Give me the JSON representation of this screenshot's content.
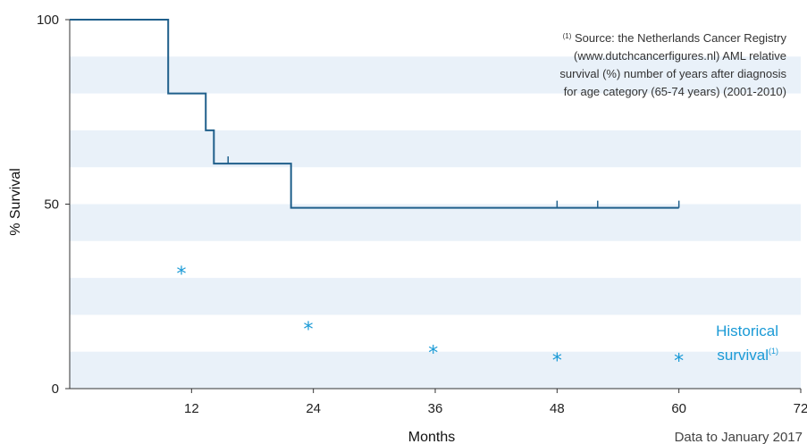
{
  "chart_data": {
    "type": "line",
    "ylabel": "% Survival",
    "xlabel": "Months",
    "xlim": [
      0,
      72
    ],
    "ylim": [
      0,
      100
    ],
    "x_ticks": [
      12,
      24,
      36,
      48,
      60,
      72
    ],
    "y_ticks": [
      0,
      50,
      100
    ],
    "grid_bands": true,
    "kaplan_meier": {
      "steps": [
        {
          "x": 0,
          "y": 100
        },
        {
          "x": 9.7,
          "y": 80
        },
        {
          "x": 13.4,
          "y": 70
        },
        {
          "x": 14.2,
          "y": 61
        },
        {
          "x": 21.8,
          "y": 49
        },
        {
          "x": 60,
          "y": 49
        }
      ],
      "censor_marks": [
        {
          "x": 15.6,
          "y": 61
        },
        {
          "x": 48,
          "y": 49
        },
        {
          "x": 52,
          "y": 49
        },
        {
          "x": 60,
          "y": 49
        }
      ]
    },
    "historical": {
      "label_line1": "Historical",
      "label_line2": "survival",
      "label_sup": "(1)",
      "marker": "*",
      "color": "#1a9ad6",
      "points": [
        {
          "x": 11,
          "y": 32
        },
        {
          "x": 23.5,
          "y": 17
        },
        {
          "x": 35.8,
          "y": 10.5
        },
        {
          "x": 48,
          "y": 8.5
        },
        {
          "x": 60,
          "y": 8.3
        }
      ]
    },
    "source_note": {
      "sup": "(1)",
      "line1": " Source: the Netherlands Cancer Registry",
      "line2": "(www.dutchcancerfigures.nl) AML relative",
      "line3": "survival (%) number of years after diagnosis",
      "line4": "for age category (65-74 years) (2001-2010)"
    },
    "footer_note": "Data to January 2017",
    "colors": {
      "km_line": "#1f5f8b",
      "band": "#e9f1f9",
      "axis": "#333333"
    }
  }
}
